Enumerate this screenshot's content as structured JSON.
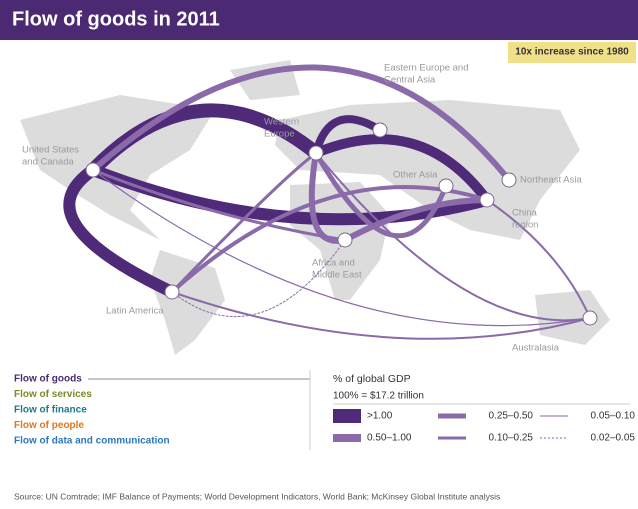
{
  "header": {
    "title": "Flow of goods in 2011",
    "badge": "10x increase since 1980"
  },
  "regions": [
    {
      "lines": [
        "United States",
        "and Canada"
      ]
    },
    {
      "lines": [
        "Western",
        "Europe"
      ]
    },
    {
      "lines": [
        "Eastern Europe and",
        "Central Asia"
      ]
    },
    {
      "lines": [
        "Other Asia"
      ]
    },
    {
      "lines": [
        "Northeast Asia"
      ]
    },
    {
      "lines": [
        "China",
        "region"
      ]
    },
    {
      "lines": [
        "Africa and",
        "Middle East"
      ]
    },
    {
      "lines": [
        "Latin America"
      ]
    },
    {
      "lines": [
        "Australasia"
      ]
    }
  ],
  "flow_types": [
    {
      "label": "Flow of goods",
      "color": "#4b2a73"
    },
    {
      "label": "Flow of services",
      "color": "#7d8a25"
    },
    {
      "label": "Flow of finance",
      "color": "#1d7b8a"
    },
    {
      "label": "Flow of people",
      "color": "#e0761c"
    },
    {
      "label": "Flow of data and communication",
      "color": "#2b78bd"
    }
  ],
  "legend": {
    "title": "% of global GDP",
    "subtitle": "100% = $17.2 trillion",
    "items": [
      ">1.00",
      "0.50–1.00",
      "0.25–0.50",
      "0.10–0.25",
      "0.05–0.10",
      "0.02–0.05"
    ]
  },
  "source": "Source: UN Comtrade; IMF Balance of Payments; World Development Indicators, World Bank; McKinsey Global Institute analysis"
}
